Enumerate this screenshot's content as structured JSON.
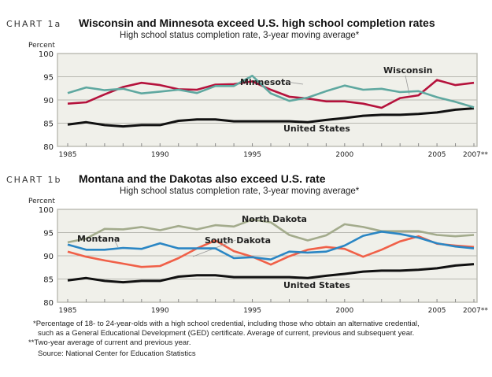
{
  "chart_data": [
    {
      "type": "line",
      "label": "CHART 1a",
      "title": "Wisconsin and Minnesota exceed U.S. high school completion rates",
      "subtitle": "High school status completion rate, 3-year moving average*",
      "ylabel": "Percent",
      "ylim": [
        80,
        100
      ],
      "yticks": [
        80,
        85,
        90,
        95,
        100
      ],
      "xlim": [
        1985,
        2007
      ],
      "xtick_labels": [
        "1985",
        "1990",
        "1995",
        "2000",
        "2005",
        "2007**"
      ],
      "xtick_values": [
        1985,
        1990,
        1995,
        2000,
        2005,
        2007
      ],
      "grid": true,
      "x": [
        1985,
        1986,
        1987,
        1988,
        1989,
        1990,
        1991,
        1992,
        1993,
        1994,
        1995,
        1996,
        1997,
        1998,
        1999,
        2000,
        2001,
        2002,
        2003,
        2004,
        2005,
        2006,
        2007
      ],
      "series": [
        {
          "name": "United States",
          "color": "#111111",
          "values": [
            84.7,
            85.2,
            84.6,
            84.3,
            84.6,
            84.6,
            85.5,
            85.8,
            85.8,
            85.4,
            85.4,
            85.4,
            85.4,
            85.2,
            85.7,
            86.1,
            86.6,
            86.8,
            86.8,
            87.0,
            87.3,
            87.9,
            88.2
          ]
        },
        {
          "name": "Wisconsin",
          "color": "#b5123c",
          "values": [
            89.2,
            89.5,
            91.2,
            92.8,
            93.7,
            93.2,
            92.3,
            92.2,
            93.3,
            93.4,
            94.0,
            92.2,
            90.7,
            90.3,
            89.7,
            89.7,
            89.2,
            88.3,
            90.4,
            91.0,
            94.3,
            93.2,
            93.7
          ]
        },
        {
          "name": "Minnesota",
          "color": "#5fa8a0",
          "values": [
            91.5,
            92.7,
            92.1,
            92.4,
            91.4,
            91.8,
            92.2,
            91.5,
            93.0,
            93.0,
            95.2,
            91.4,
            89.8,
            90.5,
            91.9,
            93.1,
            92.2,
            92.4,
            91.7,
            91.9,
            90.6,
            89.6,
            88.4
          ]
        }
      ]
    },
    {
      "type": "line",
      "label": "CHART 1b",
      "title": "Montana and the Dakotas also exceed U.S. rate",
      "subtitle": "High school status completion rate, 3-year moving average*",
      "ylabel": "Percent",
      "ylim": [
        80,
        100
      ],
      "yticks": [
        80,
        85,
        90,
        95,
        100
      ],
      "xlim": [
        1985,
        2007
      ],
      "xtick_labels": [
        "1985",
        "1990",
        "1995",
        "2000",
        "2005",
        "2007**"
      ],
      "xtick_values": [
        1985,
        1990,
        1995,
        2000,
        2005,
        2007
      ],
      "grid": true,
      "x": [
        1985,
        1986,
        1987,
        1988,
        1989,
        1990,
        1991,
        1992,
        1993,
        1994,
        1995,
        1996,
        1997,
        1998,
        1999,
        2000,
        2001,
        2002,
        2003,
        2004,
        2005,
        2006,
        2007
      ],
      "series": [
        {
          "name": "United States",
          "color": "#111111",
          "values": [
            84.7,
            85.2,
            84.6,
            84.3,
            84.6,
            84.6,
            85.5,
            85.8,
            85.8,
            85.4,
            85.4,
            85.4,
            85.4,
            85.2,
            85.7,
            86.1,
            86.6,
            86.8,
            86.8,
            87.0,
            87.3,
            87.9,
            88.2
          ]
        },
        {
          "name": "North Dakota",
          "color": "#a3ab8c",
          "values": [
            92.9,
            93.7,
            95.8,
            95.7,
            96.2,
            95.5,
            96.4,
            95.7,
            96.6,
            96.3,
            97.8,
            97.2,
            94.5,
            93.3,
            94.4,
            96.8,
            96.2,
            95.3,
            95.3,
            95.3,
            94.5,
            94.2,
            94.5
          ]
        },
        {
          "name": "South Dakota",
          "color": "#f06048",
          "values": [
            90.9,
            89.8,
            89.0,
            88.3,
            87.6,
            87.8,
            89.5,
            91.6,
            93.3,
            91.0,
            89.8,
            88.1,
            89.9,
            91.3,
            91.9,
            91.5,
            89.8,
            91.3,
            93.1,
            94.2,
            92.6,
            92.2,
            91.9
          ]
        },
        {
          "name": "Montana",
          "color": "#2a86c4",
          "values": [
            92.4,
            91.3,
            91.3,
            91.7,
            91.5,
            92.7,
            91.6,
            91.6,
            91.6,
            89.5,
            89.7,
            89.2,
            90.9,
            90.7,
            90.9,
            92.2,
            94.3,
            95.2,
            94.7,
            93.9,
            92.7,
            92.0,
            91.6
          ]
        }
      ]
    }
  ],
  "footnotes": {
    "line1": "*Percentage of 18- to 24-year-olds with a high school credential, including those who obtain an alternative credential,",
    "line2": "such as a General Educational Development (GED) certificate. Average of current, previous and subsequent year.",
    "line3": "**Two-year average of current and previous year.",
    "source": "Source: National Center for Education Statistics"
  }
}
